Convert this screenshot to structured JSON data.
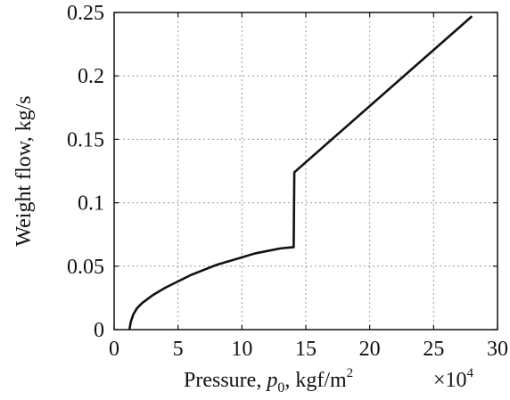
{
  "chart_data": {
    "type": "line",
    "title": "",
    "xlabel_prefix": "Pressure, ",
    "xlabel_var": "p",
    "xlabel_sub": "0",
    "xlabel_units": ", kgf/m",
    "xlabel_units_sup": "2",
    "x_multiplier_base": "×10",
    "x_multiplier_exp": "4",
    "ylabel": "Weight flow, kg/s",
    "xlim": [
      0,
      30
    ],
    "ylim": [
      0,
      0.25
    ],
    "xticks": [
      0,
      5,
      10,
      15,
      20,
      25,
      30
    ],
    "xtick_labels": [
      "0",
      "5",
      "10",
      "15",
      "20",
      "25",
      "30"
    ],
    "yticks": [
      0,
      0.05,
      0.1,
      0.15,
      0.2,
      0.25
    ],
    "ytick_labels": [
      "0",
      "0.05",
      "0.1",
      "0.15",
      "0.2",
      "0.25"
    ],
    "grid": true,
    "series": [
      {
        "x": [
          1.2,
          1.3,
          1.5,
          1.8,
          2.2,
          3,
          4,
          5,
          6,
          7,
          8,
          9,
          10,
          11,
          12,
          13,
          14,
          14.05,
          14.1,
          28
        ],
        "y": [
          0,
          0.006,
          0.012,
          0.017,
          0.021,
          0.027,
          0.033,
          0.038,
          0.043,
          0.047,
          0.051,
          0.054,
          0.057,
          0.06,
          0.062,
          0.064,
          0.065,
          0.065,
          0.124,
          0.247
        ]
      }
    ],
    "colors": {
      "line": "#111111",
      "grid": "#9a9a9a",
      "axes": "#111111"
    }
  }
}
